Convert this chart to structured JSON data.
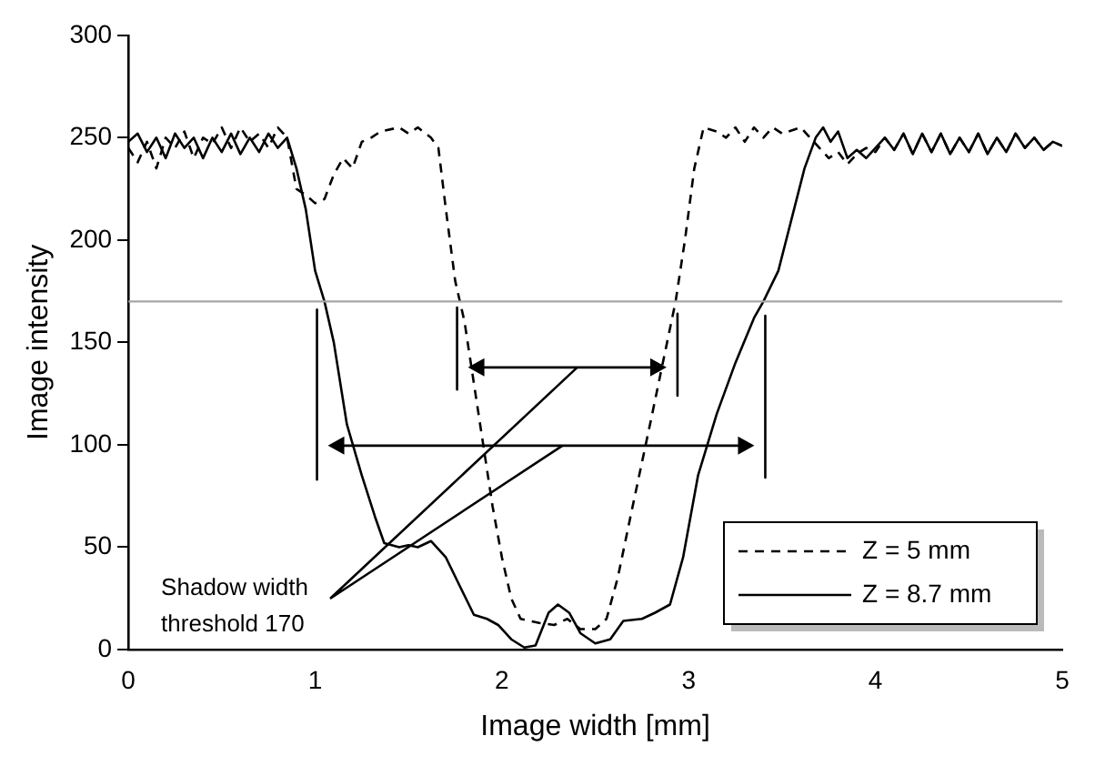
{
  "chart_data": {
    "type": "line",
    "xlabel": "Image width [mm]",
    "ylabel": "Image intensity",
    "xlim": [
      0,
      5
    ],
    "xticks": [
      0,
      1,
      2,
      3,
      4,
      5
    ],
    "ylim": [
      0,
      300
    ],
    "yticks": [
      0,
      50,
      100,
      150,
      200,
      250,
      300
    ],
    "grid": false,
    "legend": "bottom right",
    "marker": "none",
    "ref_lines": [
      {
        "axis": "y",
        "value": 170,
        "color": "#a6a6a6"
      }
    ],
    "annotations": [
      "Shadow width threshold 170"
    ],
    "series": [
      {
        "color": "#000000",
        "line_style": "solid",
        "x": [
          1.76,
          1.76,
          2.35,
          2.94,
          2.94
        ],
        "values": [
          167,
          127,
          null,
          164,
          124
        ]
      },
      {
        "color": "#000000",
        "line_style": "solid",
        "x": [
          1.01,
          1.01,
          2.2,
          3.41,
          3.41
        ],
        "values": [
          166,
          83,
          null,
          163,
          84
        ]
      },
      {
        "name": "Z = 5 mm",
        "color": "#000000",
        "line_style": "dashed",
        "x": [
          0,
          0.05,
          0.1,
          0.15,
          0.2,
          0.25,
          0.3,
          0.35,
          0.4,
          0.45,
          0.5,
          0.55,
          0.6,
          0.65,
          0.7,
          0.75,
          0.8,
          0.85,
          0.9,
          0.95,
          1.0,
          1.05,
          1.1,
          1.15,
          1.2,
          1.25,
          1.3,
          1.35,
          1.45,
          1.5,
          1.55,
          1.62,
          1.66,
          1.7,
          1.75,
          1.8,
          1.85,
          1.93,
          1.95,
          2.0,
          2.05,
          2.1,
          2.2,
          2.28,
          2.35,
          2.42,
          2.5,
          2.56,
          2.62,
          2.7,
          2.8,
          2.85,
          2.93,
          2.98,
          3.03,
          3.08,
          3.15,
          3.2,
          3.25,
          3.3,
          3.35,
          3.4,
          3.45,
          3.5,
          3.6,
          3.7,
          3.75,
          3.8,
          3.85,
          3.9,
          3.95,
          4.0,
          4.05,
          4.1,
          4.15,
          4.2,
          4.25,
          4.3,
          4.35,
          4.4,
          4.45,
          4.5,
          4.55,
          4.6,
          4.65,
          4.7,
          4.75,
          4.8,
          4.85,
          4.9,
          4.95,
          5.0
        ],
        "values": [
          245,
          238,
          248,
          235,
          250,
          245,
          253,
          240,
          250,
          247,
          255,
          245,
          255,
          248,
          252,
          245,
          255,
          250,
          225,
          222,
          218,
          220,
          232,
          240,
          235,
          248,
          250,
          253,
          255,
          252,
          255,
          250,
          245,
          215,
          180,
          160,
          130,
          82,
          70,
          45,
          25,
          15,
          13,
          12,
          15,
          10,
          10,
          15,
          35,
          70,
          113,
          135,
          170,
          200,
          235,
          255,
          253,
          250,
          255,
          248,
          255,
          250,
          255,
          252,
          255,
          245,
          240,
          243,
          237,
          242,
          245,
          243,
          250,
          244,
          252,
          242,
          252,
          243,
          252,
          242,
          250,
          243,
          252,
          242,
          250,
          243,
          252,
          245,
          250,
          244,
          248,
          246
        ]
      },
      {
        "name": "Z = 8.7 mm",
        "color": "#000000",
        "line_style": "solid",
        "x": [
          0,
          0.05,
          0.1,
          0.15,
          0.2,
          0.25,
          0.3,
          0.35,
          0.4,
          0.45,
          0.5,
          0.55,
          0.6,
          0.65,
          0.7,
          0.75,
          0.8,
          0.85,
          0.9,
          0.95,
          1.0,
          1.05,
          1.1,
          1.17,
          1.25,
          1.32,
          1.37,
          1.45,
          1.5,
          1.55,
          1.62,
          1.7,
          1.78,
          1.85,
          1.92,
          1.98,
          2.05,
          2.12,
          2.18,
          2.25,
          2.3,
          2.36,
          2.42,
          2.5,
          2.58,
          2.65,
          2.75,
          2.82,
          2.9,
          2.97,
          3.05,
          3.15,
          3.25,
          3.35,
          3.4,
          3.48,
          3.55,
          3.62,
          3.68,
          3.72,
          3.76,
          3.8,
          3.85,
          3.9,
          3.95,
          4.0,
          4.05,
          4.1,
          4.15,
          4.2,
          4.25,
          4.3,
          4.35,
          4.4,
          4.45,
          4.5,
          4.55,
          4.6,
          4.65,
          4.7,
          4.75,
          4.8,
          4.85,
          4.9,
          4.95,
          5.0
        ],
        "values": [
          248,
          252,
          243,
          250,
          240,
          252,
          245,
          250,
          240,
          250,
          243,
          252,
          242,
          250,
          243,
          252,
          245,
          250,
          235,
          215,
          185,
          170,
          150,
          110,
          85,
          65,
          52,
          50,
          51,
          50,
          53,
          45,
          30,
          17,
          15,
          12,
          5,
          1,
          2,
          18,
          22,
          18,
          8,
          3,
          5,
          14,
          15,
          18,
          22,
          45,
          85,
          115,
          140,
          162,
          170,
          185,
          210,
          235,
          250,
          255,
          248,
          253,
          240,
          244,
          240,
          245,
          250,
          244,
          252,
          242,
          252,
          243,
          252,
          242,
          250,
          243,
          252,
          242,
          250,
          243,
          252,
          245,
          250,
          244,
          248,
          246
        ]
      }
    ]
  }
}
